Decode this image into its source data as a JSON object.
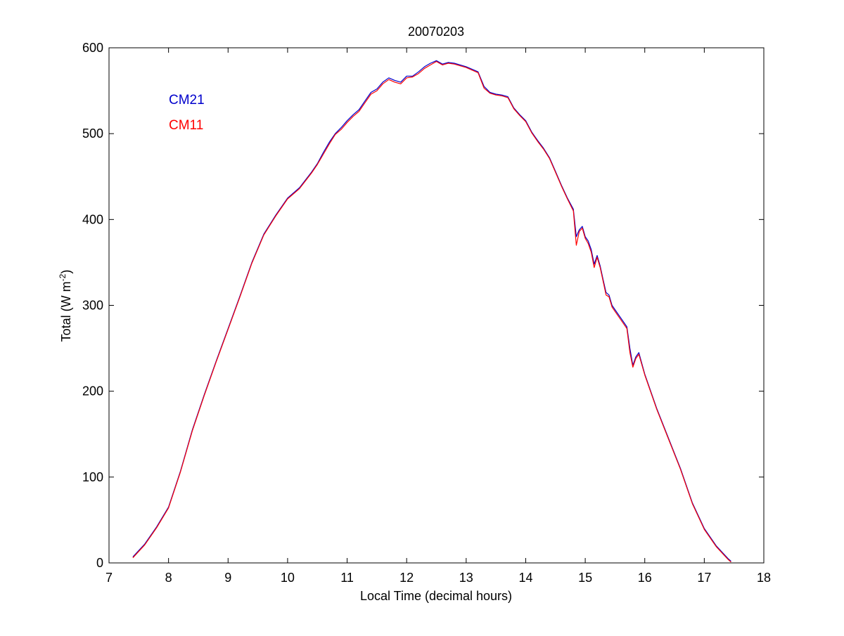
{
  "chart_data": {
    "type": "line",
    "title": "20070203",
    "xlabel": "Local Time (decimal hours)",
    "ylabel_main": "Total (W m",
    "ylabel_sup": "-2",
    "ylabel_close": ")",
    "xlim": [
      7,
      18
    ],
    "ylim": [
      0,
      600
    ],
    "xticks": [
      7,
      8,
      9,
      10,
      11,
      12,
      13,
      14,
      15,
      16,
      17,
      18
    ],
    "yticks": [
      0,
      100,
      200,
      300,
      400,
      500,
      600
    ],
    "grid": false,
    "legend_placement": "top-left",
    "series": [
      {
        "name": "CM21",
        "color": "#0000cc",
        "x": [
          7.4,
          7.6,
          7.8,
          8.0,
          8.2,
          8.4,
          8.6,
          8.8,
          9.0,
          9.2,
          9.4,
          9.6,
          9.8,
          10.0,
          10.2,
          10.4,
          10.5,
          10.6,
          10.7,
          10.8,
          10.9,
          11.0,
          11.1,
          11.2,
          11.3,
          11.4,
          11.5,
          11.6,
          11.7,
          11.8,
          11.9,
          12.0,
          12.1,
          12.2,
          12.3,
          12.4,
          12.5,
          12.6,
          12.7,
          12.8,
          12.9,
          13.0,
          13.1,
          13.2,
          13.3,
          13.4,
          13.5,
          13.6,
          13.7,
          13.8,
          13.9,
          14.0,
          14.1,
          14.2,
          14.3,
          14.4,
          14.5,
          14.6,
          14.7,
          14.8,
          14.85,
          14.9,
          14.95,
          15.0,
          15.05,
          15.1,
          15.15,
          15.2,
          15.25,
          15.3,
          15.35,
          15.4,
          15.45,
          15.5,
          15.6,
          15.7,
          15.75,
          15.8,
          15.85,
          15.9,
          16.0,
          16.2,
          16.4,
          16.6,
          16.8,
          17.0,
          17.2,
          17.4,
          17.45
        ],
        "y": [
          7,
          22,
          42,
          65,
          107,
          155,
          196,
          235,
          273,
          311,
          350,
          383,
          405,
          425,
          437,
          455,
          465,
          478,
          490,
          500,
          507,
          515,
          522,
          528,
          538,
          548,
          552,
          560,
          565,
          562,
          560,
          567,
          567,
          572,
          578,
          582,
          585,
          581,
          583,
          582,
          580,
          578,
          575,
          572,
          555,
          548,
          546,
          545,
          543,
          530,
          522,
          515,
          502,
          492,
          483,
          472,
          456,
          440,
          425,
          412,
          380,
          388,
          392,
          380,
          375,
          365,
          348,
          358,
          346,
          330,
          315,
          312,
          300,
          295,
          285,
          275,
          250,
          230,
          240,
          245,
          220,
          180,
          145,
          110,
          70,
          40,
          20,
          5,
          2
        ]
      },
      {
        "name": "CM11",
        "color": "#ff0000",
        "x": [
          7.4,
          7.6,
          7.8,
          8.0,
          8.2,
          8.4,
          8.6,
          8.8,
          9.0,
          9.2,
          9.4,
          9.6,
          9.8,
          10.0,
          10.2,
          10.4,
          10.5,
          10.6,
          10.7,
          10.8,
          10.9,
          11.0,
          11.1,
          11.2,
          11.3,
          11.4,
          11.5,
          11.6,
          11.7,
          11.8,
          11.9,
          12.0,
          12.1,
          12.2,
          12.3,
          12.4,
          12.5,
          12.6,
          12.7,
          12.8,
          12.9,
          13.0,
          13.1,
          13.2,
          13.3,
          13.4,
          13.5,
          13.6,
          13.7,
          13.8,
          13.9,
          14.0,
          14.1,
          14.2,
          14.3,
          14.4,
          14.5,
          14.6,
          14.7,
          14.8,
          14.85,
          14.9,
          14.95,
          15.0,
          15.05,
          15.1,
          15.15,
          15.2,
          15.25,
          15.3,
          15.35,
          15.4,
          15.45,
          15.5,
          15.6,
          15.7,
          15.75,
          15.8,
          15.85,
          15.9,
          16.0,
          16.2,
          16.4,
          16.6,
          16.8,
          17.0,
          17.2,
          17.4,
          17.45
        ],
        "y": [
          6,
          21,
          41,
          64,
          106,
          154,
          195,
          234,
          272,
          310,
          349,
          382,
          404,
          424,
          436,
          454,
          464,
          476,
          488,
          499,
          505,
          513,
          520,
          526,
          536,
          546,
          550,
          558,
          563,
          560,
          558,
          565,
          566,
          570,
          576,
          580,
          584,
          580,
          582,
          581,
          579,
          577,
          574,
          571,
          553,
          547,
          545,
          544,
          542,
          529,
          521,
          514,
          501,
          491,
          482,
          471,
          455,
          439,
          424,
          410,
          370,
          386,
          390,
          378,
          372,
          362,
          344,
          356,
          344,
          328,
          312,
          310,
          298,
          293,
          283,
          273,
          245,
          228,
          238,
          243,
          219,
          179,
          144,
          109,
          69,
          39,
          19,
          4,
          1
        ]
      }
    ]
  }
}
